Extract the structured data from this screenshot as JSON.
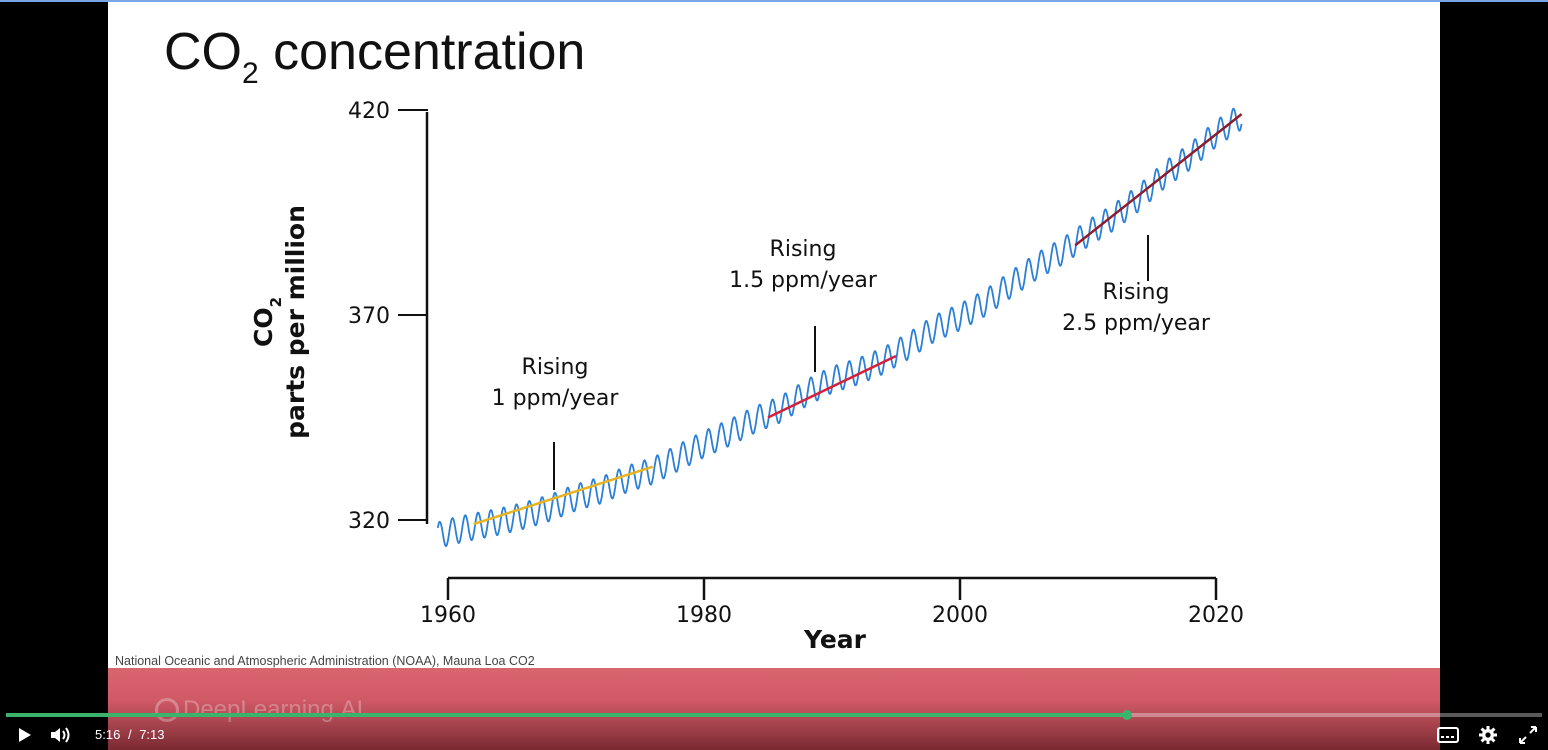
{
  "slide": {
    "title_main": "CO",
    "title_sub": "2",
    "title_rest": " concentration",
    "credit": "National Oceanic and Atmospheric Administration (NOAA), Mauna Loa CO2"
  },
  "chart_data": {
    "type": "line",
    "title": "CO2 concentration",
    "xlabel": "Year",
    "ylabel": "CO2 parts per million",
    "ylabel_main": "CO",
    "ylabel_sub": "2",
    "ylabel_line2": "parts per million",
    "x_ticks": [
      "1960",
      "1980",
      "2000",
      "2020"
    ],
    "y_ticks": [
      "320",
      "370",
      "420"
    ],
    "xlim": [
      1959,
      2022
    ],
    "ylim": [
      320,
      420
    ],
    "x": [
      1959,
      1960,
      1962,
      1964,
      1966,
      1968,
      1970,
      1972,
      1974,
      1976,
      1978,
      1980,
      1982,
      1984,
      1986,
      1988,
      1990,
      1992,
      1994,
      1996,
      1998,
      2000,
      2002,
      2004,
      2006,
      2008,
      2010,
      2012,
      2014,
      2016,
      2018,
      2020,
      2022
    ],
    "values": [
      316,
      317,
      318.4,
      319.6,
      321.1,
      323,
      325.5,
      327.3,
      330,
      332,
      335.2,
      338.5,
      341.3,
      344.5,
      347,
      351,
      354.2,
      356.2,
      358.8,
      362.5,
      366.7,
      369.5,
      373,
      377.5,
      381.9,
      385.5,
      389.9,
      393.8,
      398.6,
      404.2,
      408.7,
      414.2,
      418.5
    ],
    "seasonal_amplitude_ppm": 3.2,
    "trends": [
      {
        "label_line1": "Rising",
        "label_line2": "1 ppm/year",
        "x": [
          1962,
          1976
        ],
        "y": [
          319,
          333
        ],
        "color": "#e9b320"
      },
      {
        "label_line1": "Rising",
        "label_line2": "1.5 ppm/year",
        "x": [
          1985,
          1995
        ],
        "y": [
          345,
          360
        ],
        "color": "#d6203a"
      },
      {
        "label_line1": "Rising",
        "label_line2": "2.5 ppm/year",
        "x": [
          2009,
          2022
        ],
        "y": [
          387,
          419
        ],
        "color": "#8e1b2a"
      }
    ],
    "line_color": "#2b7fd6",
    "grid": false
  },
  "brand": {
    "logo_text": "DeepLearning.AI"
  },
  "player": {
    "current_time": "5:16",
    "separator": "/",
    "duration": "7:13",
    "progress_fraction": 0.73,
    "accent": "#3bb36a"
  }
}
